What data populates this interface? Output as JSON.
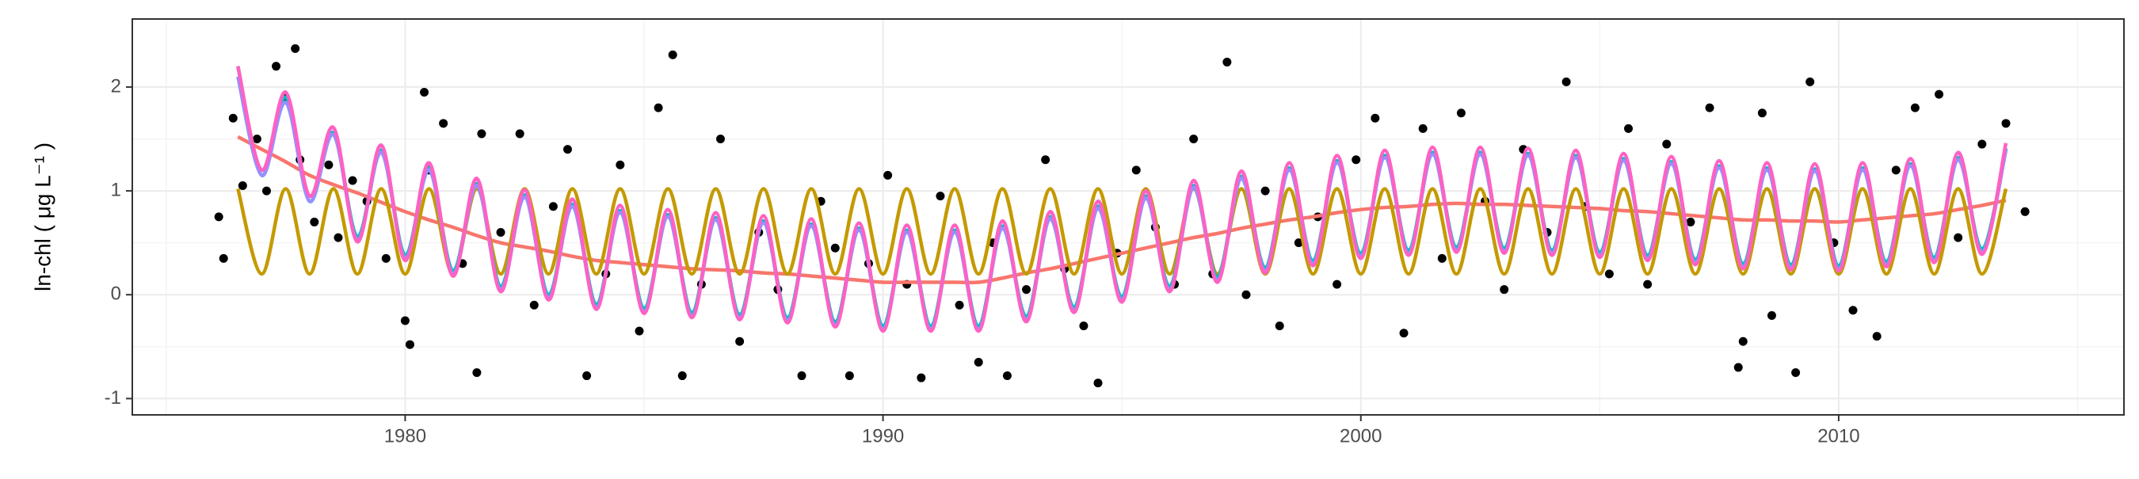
{
  "chart_data": {
    "type": "scatter",
    "ylabel": "ln-chl ( μg L⁻¹ )",
    "xlim": [
      1974.29,
      2015.97
    ],
    "ylim": [
      -1.157,
      2.655
    ],
    "xticks": [
      1980,
      1990,
      2000,
      2010
    ],
    "yticks": [
      -1,
      0,
      1,
      2
    ],
    "xminor_ticks": [
      1975,
      1985,
      1995,
      2005,
      2015
    ],
    "yminor_ticks": [
      -0.5,
      0.5,
      1.5
    ],
    "grid": true,
    "x": [
      1976.5,
      1977,
      1977.5,
      1978,
      1978.5,
      1979,
      1979.5,
      1980,
      1980.5,
      1981,
      1981.5,
      1982,
      1982.5,
      1983,
      1983.5,
      1984,
      1984.5,
      1985,
      1985.5,
      1986,
      1986.5,
      1987,
      1987.5,
      1988,
      1988.5,
      1989,
      1989.5,
      1990,
      1990.5,
      1991,
      1991.5,
      1992,
      1992.5,
      1993,
      1993.5,
      1994,
      1994.5,
      1995,
      1995.5,
      1996,
      1996.5,
      1997,
      1997.5,
      1998,
      1998.5,
      1999,
      1999.5,
      2000,
      2000.5,
      2001,
      2001.5,
      2002,
      2002.5,
      2003,
      2003.5,
      2004,
      2004.5,
      2005,
      2005.5,
      2006,
      2006.5,
      2007,
      2007.5,
      2008,
      2008.5,
      2009,
      2009.5,
      2010,
      2010.5,
      2011,
      2011.5,
      2012,
      2012.5,
      2013,
      2013.5
    ],
    "series": [
      {
        "color": "#000000",
        "mode": "markers",
        "x": [
          1976.1,
          1976.2,
          1976.4,
          1976.6,
          1976.9,
          1977.1,
          1977.3,
          1977.5,
          1977.7,
          1977.8,
          1978.1,
          1978.4,
          1978.6,
          1978.9,
          1979.2,
          1979.6,
          1980.0,
          1980.1,
          1980.4,
          1980.5,
          1980.8,
          1981.2,
          1981.5,
          1981.6,
          1982.0,
          1982.4,
          1982.7,
          1983.1,
          1983.4,
          1983.8,
          1984.2,
          1984.5,
          1984.9,
          1985.3,
          1985.6,
          1985.8,
          1986.2,
          1986.6,
          1987.0,
          1987.4,
          1987.8,
          1988.3,
          1988.7,
          1989.0,
          1989.3,
          1989.7,
          1990.1,
          1990.5,
          1990.8,
          1991.2,
          1991.6,
          1992.0,
          1992.3,
          1992.6,
          1993.0,
          1993.4,
          1993.8,
          1994.2,
          1994.5,
          1994.9,
          1995.3,
          1995.7,
          1996.1,
          1996.5,
          1996.9,
          1997.2,
          1997.6,
          1998.0,
          1998.3,
          1998.7,
          1999.1,
          1999.5,
          1999.9,
          2000.3,
          2000.9,
          2001.3,
          2001.7,
          2002.1,
          2002.6,
          2003.0,
          2003.4,
          2003.9,
          2004.3,
          2004.7,
          2005.2,
          2005.6,
          2006.0,
          2006.4,
          2006.9,
          2007.3,
          2007.9,
          2008.0,
          2008.4,
          2008.6,
          2009.1,
          2009.4,
          2009.9,
          2010.3,
          2010.8,
          2011.2,
          2011.6,
          2012.1,
          2012.5,
          2013.0,
          2013.5,
          2013.9
        ],
        "values": [
          0.75,
          0.35,
          1.7,
          1.05,
          1.5,
          1.0,
          2.2,
          1.9,
          2.37,
          1.3,
          0.7,
          1.25,
          0.55,
          1.1,
          0.9,
          0.35,
          -0.25,
          -0.48,
          1.95,
          1.2,
          1.65,
          0.3,
          -0.75,
          1.55,
          0.6,
          1.55,
          -0.1,
          0.85,
          1.4,
          -0.78,
          0.2,
          1.25,
          -0.35,
          1.8,
          2.31,
          -0.78,
          0.1,
          1.5,
          -0.45,
          0.6,
          0.05,
          -0.78,
          0.9,
          0.45,
          -0.78,
          0.3,
          1.15,
          0.1,
          -0.8,
          0.95,
          -0.1,
          -0.65,
          0.5,
          -0.78,
          0.05,
          1.3,
          0.25,
          -0.3,
          -0.85,
          0.4,
          1.2,
          0.65,
          0.1,
          1.5,
          0.2,
          2.24,
          0.0,
          1.0,
          -0.3,
          0.5,
          0.75,
          0.1,
          1.3,
          1.7,
          -0.37,
          1.6,
          0.35,
          1.75,
          0.9,
          0.05,
          1.4,
          0.6,
          2.05,
          0.85,
          0.2,
          1.6,
          0.1,
          1.45,
          0.7,
          1.8,
          -0.7,
          -0.45,
          1.75,
          -0.2,
          -0.75,
          2.05,
          0.5,
          -0.15,
          -0.4,
          1.2,
          1.8,
          1.93,
          0.55,
          1.45,
          1.65,
          0.8
        ]
      },
      {
        "color": "#F8766D",
        "mode": "lines",
        "values": [
          1.52,
          1.4,
          1.28,
          1.15,
          1.06,
          0.98,
          0.89,
          0.8,
          0.72,
          0.65,
          0.57,
          0.5,
          0.46,
          0.42,
          0.37,
          0.33,
          0.31,
          0.29,
          0.27,
          0.25,
          0.24,
          0.23,
          0.21,
          0.2,
          0.18,
          0.16,
          0.14,
          0.12,
          0.12,
          0.12,
          0.12,
          0.12,
          0.16,
          0.21,
          0.25,
          0.3,
          0.35,
          0.4,
          0.45,
          0.5,
          0.55,
          0.59,
          0.64,
          0.68,
          0.72,
          0.75,
          0.79,
          0.82,
          0.84,
          0.85,
          0.87,
          0.88,
          0.87,
          0.87,
          0.86,
          0.85,
          0.84,
          0.83,
          0.81,
          0.8,
          0.78,
          0.76,
          0.74,
          0.72,
          0.72,
          0.71,
          0.71,
          0.7,
          0.72,
          0.74,
          0.76,
          0.78,
          0.82,
          0.86,
          0.91
        ]
      },
      {
        "color": "#C49A00",
        "mode": "lines",
        "values": [
          1.02,
          0.2,
          1.02,
          0.2,
          1.02,
          0.2,
          1.02,
          0.2,
          1.02,
          0.2,
          1.02,
          0.2,
          1.02,
          0.2,
          1.02,
          0.2,
          1.02,
          0.2,
          1.02,
          0.2,
          1.02,
          0.2,
          1.02,
          0.2,
          1.02,
          0.2,
          1.02,
          0.2,
          1.02,
          0.2,
          1.02,
          0.2,
          1.02,
          0.2,
          1.02,
          0.2,
          1.02,
          0.2,
          1.02,
          0.2,
          1.02,
          0.2,
          1.02,
          0.2,
          1.02,
          0.2,
          1.02,
          0.2,
          1.02,
          0.2,
          1.02,
          0.2,
          1.02,
          0.2,
          1.02,
          0.2,
          1.02,
          0.2,
          1.02,
          0.2,
          1.02,
          0.2,
          1.02,
          0.2,
          1.02,
          0.2,
          1.02,
          0.2,
          1.02,
          0.2,
          1.02,
          0.2,
          1.02,
          0.2,
          1.02
        ]
      },
      {
        "color": "#00BFC4",
        "mode": "lines",
        "values": [
          2.2,
          1.15,
          1.9,
          0.9,
          1.56,
          0.56,
          1.39,
          0.38,
          1.22,
          0.23,
          1.07,
          0.08,
          0.96,
          0,
          0.87,
          -0.09,
          0.81,
          -0.13,
          0.77,
          -0.17,
          0.74,
          -0.19,
          0.71,
          -0.22,
          0.68,
          -0.26,
          0.64,
          -0.3,
          0.62,
          -0.3,
          0.62,
          -0.3,
          0.66,
          -0.21,
          0.75,
          -0.12,
          0.85,
          -0.02,
          0.95,
          0.08,
          1.05,
          0.17,
          1.14,
          0.26,
          1.22,
          0.33,
          1.29,
          0.4,
          1.34,
          0.43,
          1.37,
          0.46,
          1.37,
          0.45,
          1.36,
          0.43,
          1.34,
          0.41,
          1.31,
          0.38,
          1.28,
          0.34,
          1.24,
          0.3,
          1.22,
          0.29,
          1.21,
          0.28,
          1.22,
          0.32,
          1.26,
          0.36,
          1.32,
          0.44,
          1.41
        ]
      },
      {
        "color": "#9590FF",
        "mode": "lines",
        "values": [
          2.1,
          1.15,
          1.85,
          0.9,
          1.54,
          0.53,
          1.37,
          0.35,
          1.2,
          0.2,
          1.05,
          0.05,
          0.94,
          -0.03,
          0.85,
          -0.12,
          0.79,
          -0.16,
          0.75,
          -0.2,
          0.72,
          -0.22,
          0.69,
          -0.25,
          0.66,
          -0.29,
          0.62,
          -0.33,
          0.6,
          -0.33,
          0.6,
          -0.33,
          0.64,
          -0.24,
          0.73,
          -0.15,
          0.83,
          -0.05,
          0.93,
          0.05,
          1.03,
          0.14,
          1.12,
          0.23,
          1.2,
          0.3,
          1.27,
          0.37,
          1.32,
          0.4,
          1.35,
          0.43,
          1.35,
          0.42,
          1.34,
          0.4,
          1.32,
          0.38,
          1.29,
          0.35,
          1.26,
          0.31,
          1.22,
          0.27,
          1.2,
          0.26,
          1.19,
          0.25,
          1.2,
          0.29,
          1.24,
          0.33,
          1.3,
          0.41,
          1.39
        ]
      },
      {
        "color": "#FF61C3",
        "mode": "lines",
        "values": [
          2.2,
          1.2,
          1.95,
          0.95,
          1.61,
          0.51,
          1.44,
          0.33,
          1.27,
          0.18,
          1.12,
          0.03,
          1.01,
          -0.05,
          0.92,
          -0.14,
          0.86,
          -0.18,
          0.82,
          -0.22,
          0.79,
          -0.24,
          0.76,
          -0.27,
          0.73,
          -0.31,
          0.69,
          -0.35,
          0.67,
          -0.35,
          0.67,
          -0.35,
          0.71,
          -0.26,
          0.8,
          -0.17,
          0.9,
          -0.07,
          1,
          0.03,
          1.1,
          0.12,
          1.19,
          0.21,
          1.27,
          0.28,
          1.34,
          0.35,
          1.39,
          0.38,
          1.42,
          0.41,
          1.42,
          0.4,
          1.41,
          0.38,
          1.39,
          0.36,
          1.36,
          0.33,
          1.33,
          0.29,
          1.29,
          0.25,
          1.27,
          0.24,
          1.26,
          0.23,
          1.27,
          0.27,
          1.31,
          0.31,
          1.37,
          0.39,
          1.46
        ]
      }
    ]
  }
}
